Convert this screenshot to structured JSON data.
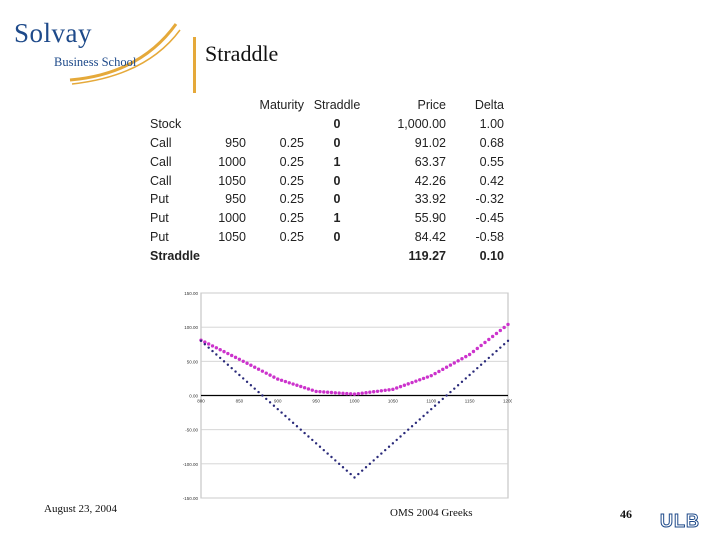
{
  "logo": {
    "main": "Solvay",
    "sub": "Business School"
  },
  "slide_title": "Straddle",
  "table": {
    "headers": [
      "",
      "",
      "Maturity",
      "Straddle",
      "Price",
      "Delta"
    ],
    "rows": [
      [
        "Stock",
        "",
        "",
        "0",
        "1,000.00",
        "1.00"
      ],
      [
        "Call",
        "950",
        "0.25",
        "0",
        "91.02",
        "0.68"
      ],
      [
        "Call",
        "1000",
        "0.25",
        "1",
        "63.37",
        "0.55"
      ],
      [
        "Call",
        "1050",
        "0.25",
        "0",
        "42.26",
        "0.42"
      ],
      [
        "Put",
        "950",
        "0.25",
        "0",
        "33.92",
        "-0.32"
      ],
      [
        "Put",
        "1000",
        "0.25",
        "1",
        "55.90",
        "-0.45"
      ],
      [
        "Put",
        "1050",
        "0.25",
        "0",
        "84.42",
        "-0.58"
      ]
    ],
    "total": {
      "label": "Straddle",
      "price": "119.27",
      "delta": "0.10"
    }
  },
  "chart_data": {
    "type": "line",
    "x": [
      800,
      850,
      900,
      950,
      1000,
      1050,
      1100,
      1150,
      1200
    ],
    "xticks": [
      "800",
      "850",
      "900",
      "950",
      "1000",
      "1050",
      "1100",
      "1150",
      "1200"
    ],
    "yticks": [
      "150.00",
      "100.00",
      "50.00",
      "0.00",
      "-50.00",
      "-100.00",
      "-150.00"
    ],
    "ylim": [
      -150,
      150
    ],
    "xlim": [
      800,
      1200
    ],
    "grid": "horizontal",
    "series": [
      {
        "color": "#cc33cc",
        "style": "dotted",
        "values": [
          81,
          53,
          24,
          6,
          2,
          9,
          29,
          60,
          104
        ]
      },
      {
        "color": "#2a2a7a",
        "style": "dotted",
        "values": [
          80,
          30,
          -20,
          -70,
          -120,
          -70,
          -20,
          30,
          80
        ]
      }
    ]
  },
  "footer": {
    "date": "August 23, 2004",
    "center": "OMS 2004 Greeks",
    "page": "46",
    "ulb": "ULB"
  }
}
